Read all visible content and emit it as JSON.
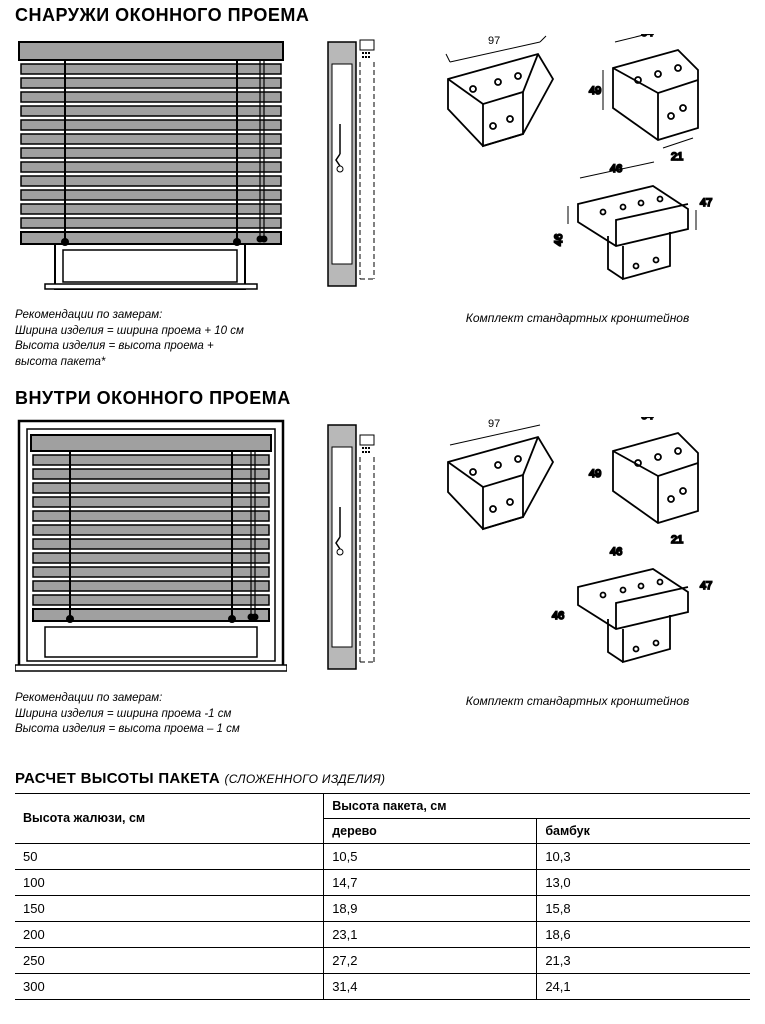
{
  "section1": {
    "title": "СНАРУЖИ ОКОННОГО ПРОЕМА",
    "note_lead": "Рекомендации по замерам:",
    "note_l1": "Ширина изделия = ширина проема + 10 см",
    "note_l2": "Высота изделия =  высота проема +",
    "note_l3": "высота пакета*",
    "bracket_caption": "Комплект стандартных кронштейнов"
  },
  "section2": {
    "title": "ВНУТРИ ОКОННОГО ПРОЕМА",
    "note_lead": "Рекомендации по замерам:",
    "note_l1": "Ширина изделия = ширина проема -1 см",
    "note_l2": "Высота изделия =  высота проема – 1 см",
    "bracket_caption": "Комплект стандартных кронштейнов"
  },
  "brackets": {
    "dims": {
      "d97": "97",
      "d64": "64",
      "d49": "49",
      "d21": "21",
      "d46a": "46",
      "d46b": "46",
      "d47": "47"
    }
  },
  "calc": {
    "title": "РАСЧЕТ ВЫСОТЫ ПАКЕТА",
    "subtitle": "(СЛОЖЕННОГО ИЗДЕЛИЯ)",
    "col_height": "Высота жалюзи, см",
    "col_pack": "Высота пакета, см",
    "col_wood": "дерево",
    "col_bamboo": "бамбук",
    "rows": [
      {
        "h": "50",
        "w": "10,5",
        "b": "10,3"
      },
      {
        "h": "100",
        "w": "14,7",
        "b": "13,0"
      },
      {
        "h": "150",
        "w": "18,9",
        "b": "15,8"
      },
      {
        "h": "200",
        "w": "23,1",
        "b": "18,6"
      },
      {
        "h": "250",
        "w": "27,2",
        "b": "21,3"
      },
      {
        "h": "300",
        "w": "31,4",
        "b": "24,1"
      }
    ]
  },
  "style": {
    "blind_fill": "#a0a0a0",
    "blind_stroke": "#000000",
    "line_w": 1.4,
    "dash": "4 3",
    "bg": "#ffffff"
  }
}
